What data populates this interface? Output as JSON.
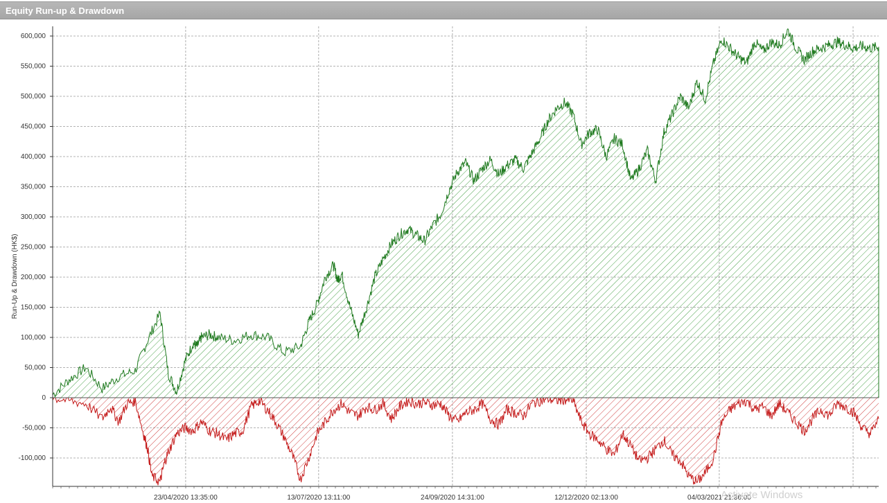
{
  "window": {
    "title": "Equity Run-up & Drawdown"
  },
  "watermark": "Activate Windows",
  "chart_data": {
    "type": "area",
    "title": "Equity Run-up & Drawdown",
    "ylabel": "Run-Up & Drawdown (HK$)",
    "xlabel": "",
    "ylim": [
      -145000,
      610000
    ],
    "yticks": [
      600000,
      550000,
      500000,
      450000,
      400000,
      350000,
      300000,
      250000,
      200000,
      150000,
      100000,
      50000,
      0,
      -50000,
      -100000
    ],
    "ytick_labels": [
      "600,000",
      "550,000",
      "500,000",
      "450,000",
      "400,000",
      "350,000",
      "300,000",
      "250,000",
      "200,000",
      "150,000",
      "100,000",
      "50,000",
      "0",
      "-50,000",
      "-100,000"
    ],
    "xtick_labels": [
      "23/04/2020 13:35:00",
      "13/07/2020 13:11:00",
      "24/09/2020 14:31:00",
      "12/12/2020 02:13:00",
      "04/03/2021 21:36:00"
    ],
    "grid": true,
    "colors": {
      "runup": "#1f7a1f",
      "runup_fill": "#3a9a3a",
      "drawdown": "#c41a1a",
      "drawdown_fill": "#d03030"
    },
    "series": [
      {
        "name": "Run-up",
        "x": [
          0,
          0.02,
          0.04,
          0.06,
          0.08,
          0.1,
          0.115,
          0.13,
          0.14,
          0.15,
          0.16,
          0.17,
          0.175,
          0.18,
          0.19,
          0.2,
          0.22,
          0.24,
          0.26,
          0.28,
          0.3,
          0.31,
          0.32,
          0.33,
          0.34,
          0.345,
          0.35,
          0.36,
          0.37,
          0.38,
          0.39,
          0.4,
          0.41,
          0.42,
          0.43,
          0.44,
          0.45,
          0.46,
          0.47,
          0.48,
          0.49,
          0.5,
          0.51,
          0.52,
          0.53,
          0.54,
          0.55,
          0.56,
          0.57,
          0.58,
          0.59,
          0.6,
          0.61,
          0.62,
          0.63,
          0.64,
          0.65,
          0.66,
          0.67,
          0.68,
          0.69,
          0.7,
          0.71,
          0.72,
          0.73,
          0.74,
          0.75,
          0.76,
          0.77,
          0.78,
          0.79,
          0.8,
          0.81,
          0.82,
          0.83,
          0.84,
          0.85,
          0.86,
          0.87,
          0.88,
          0.89,
          0.9,
          0.91,
          0.92,
          0.93,
          0.94,
          0.95,
          0.96,
          0.97,
          0.98,
          0.99,
          1.0
        ],
        "y": [
          5000,
          30000,
          50000,
          15000,
          35000,
          45000,
          95000,
          140000,
          40000,
          10000,
          60000,
          90000,
          85000,
          100000,
          105000,
          100000,
          95000,
          105000,
          100000,
          75000,
          85000,
          125000,
          155000,
          200000,
          220000,
          195000,
          205000,
          150000,
          105000,
          150000,
          200000,
          230000,
          255000,
          270000,
          280000,
          270000,
          260000,
          285000,
          305000,
          345000,
          375000,
          390000,
          360000,
          380000,
          395000,
          370000,
          385000,
          395000,
          380000,
          405000,
          430000,
          460000,
          480000,
          490000,
          470000,
          420000,
          440000,
          445000,
          400000,
          430000,
          420000,
          360000,
          380000,
          410000,
          360000,
          440000,
          470000,
          500000,
          480000,
          525000,
          495000,
          555000,
          595000,
          580000,
          565000,
          555000,
          590000,
          575000,
          590000,
          585000,
          610000,
          580000,
          560000,
          575000,
          580000,
          585000,
          590000,
          585000,
          580000,
          583000,
          580000,
          582000
        ]
      },
      {
        "name": "Drawdown",
        "x": [
          0,
          0.02,
          0.04,
          0.06,
          0.07,
          0.08,
          0.09,
          0.1,
          0.11,
          0.115,
          0.12,
          0.13,
          0.135,
          0.14,
          0.15,
          0.16,
          0.17,
          0.18,
          0.19,
          0.2,
          0.21,
          0.22,
          0.23,
          0.24,
          0.25,
          0.26,
          0.27,
          0.28,
          0.29,
          0.3,
          0.31,
          0.32,
          0.33,
          0.34,
          0.35,
          0.36,
          0.37,
          0.38,
          0.39,
          0.4,
          0.41,
          0.42,
          0.43,
          0.44,
          0.45,
          0.46,
          0.47,
          0.48,
          0.49,
          0.5,
          0.51,
          0.52,
          0.53,
          0.54,
          0.55,
          0.56,
          0.57,
          0.58,
          0.59,
          0.6,
          0.61,
          0.62,
          0.63,
          0.64,
          0.65,
          0.66,
          0.67,
          0.68,
          0.69,
          0.7,
          0.71,
          0.72,
          0.73,
          0.74,
          0.75,
          0.76,
          0.77,
          0.78,
          0.79,
          0.8,
          0.81,
          0.82,
          0.83,
          0.84,
          0.85,
          0.86,
          0.87,
          0.88,
          0.89,
          0.9,
          0.91,
          0.92,
          0.93,
          0.94,
          0.95,
          0.96,
          0.97,
          0.98,
          0.99,
          1.0
        ],
        "y": [
          0,
          -5000,
          -10000,
          -35000,
          -15000,
          -40000,
          -10000,
          -5000,
          -60000,
          -85000,
          -130000,
          -140000,
          -110000,
          -90000,
          -60000,
          -50000,
          -55000,
          -40000,
          -55000,
          -60000,
          -70000,
          -60000,
          -55000,
          -15000,
          -5000,
          -20000,
          -40000,
          -65000,
          -95000,
          -135000,
          -100000,
          -60000,
          -40000,
          -20000,
          -10000,
          -25000,
          -30000,
          -15000,
          -20000,
          -10000,
          -35000,
          -15000,
          -5000,
          -10000,
          -8000,
          -12000,
          -10000,
          -30000,
          -40000,
          -25000,
          -20000,
          -10000,
          -35000,
          -45000,
          -20000,
          -25000,
          -30000,
          -10000,
          -5000,
          -2000,
          -5000,
          -3000,
          -5000,
          -40000,
          -60000,
          -70000,
          -85000,
          -95000,
          -60000,
          -80000,
          -105000,
          -100000,
          -85000,
          -70000,
          -95000,
          -105000,
          -130000,
          -140000,
          -125000,
          -100000,
          -40000,
          -20000,
          -10000,
          -5000,
          -20000,
          -15000,
          -30000,
          -10000,
          -25000,
          -40000,
          -55000,
          -35000,
          -20000,
          -30000,
          -10000,
          -15000,
          -25000,
          -50000,
          -60000,
          -35000
        ]
      }
    ]
  }
}
